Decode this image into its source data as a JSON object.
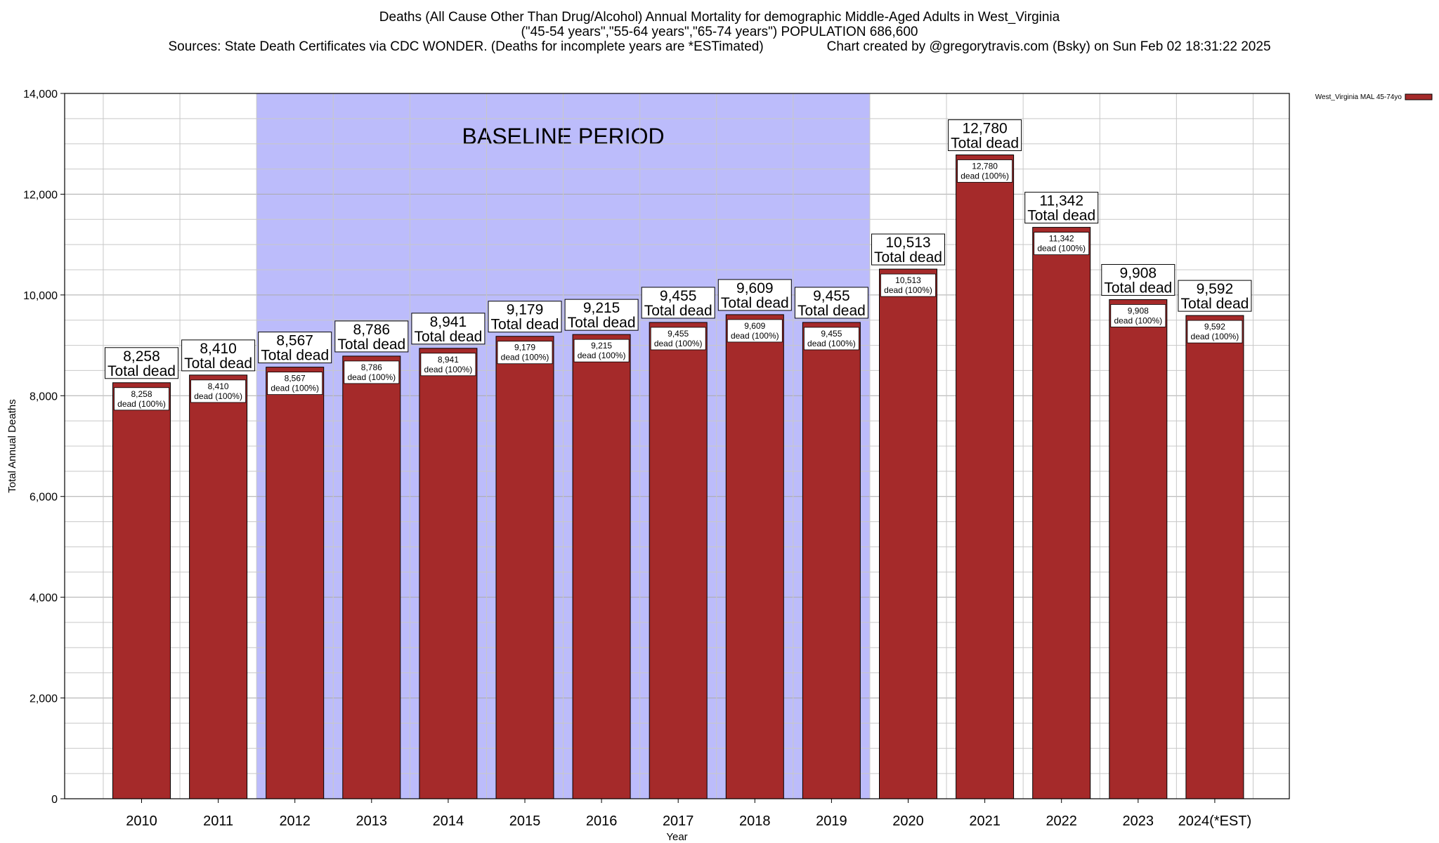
{
  "title": {
    "line1": "Deaths (All Cause Other Than Drug/Alcohol) Annual Mortality for demographic Middle-Aged Adults in West_Virginia",
    "line2": "(\"45-54 years\",\"55-64 years\",\"65-74 years\") POPULATION 686,600",
    "sources": "Sources: State Death Certificates via CDC WONDER. (Deaths for incomplete years are *ESTimated)",
    "credit": "Chart created by @gregorytravis.com (Bsky) on Sun Feb 02 18:31:22 2025"
  },
  "colors": {
    "bar": "#a52a2a",
    "bar_edge": "#000000",
    "baseline_band": "#bcbcfb",
    "grid": "#c8c8c8"
  },
  "chart_data": {
    "type": "bar",
    "title": "Deaths (All Cause Other Than Drug/Alcohol) Annual Mortality for demographic Middle-Aged Adults in West_Virginia",
    "xlabel": "Year",
    "ylabel": "Total Annual Deaths",
    "ylim": [
      0,
      14000
    ],
    "yticks": [
      0,
      2000,
      4000,
      6000,
      8000,
      10000,
      12000,
      14000
    ],
    "ytick_labels": [
      "0",
      "2,000",
      "4,000",
      "6,000",
      "8,000",
      "10,000",
      "12,000",
      "14,000"
    ],
    "grid": true,
    "legend_position": "top-right",
    "categories": [
      "2010",
      "2011",
      "2012",
      "2013",
      "2014",
      "2015",
      "2016",
      "2017",
      "2018",
      "2019",
      "2020",
      "2021",
      "2022",
      "2023",
      "2024(*EST)"
    ],
    "series": [
      {
        "name": "West_Virginia MAL 45-74yo",
        "values": [
          8258,
          8410,
          8567,
          8786,
          8941,
          9179,
          9215,
          9455,
          9609,
          9455,
          10513,
          12780,
          11342,
          9908,
          9592
        ],
        "value_labels": [
          "8,258",
          "8,410",
          "8,567",
          "8,786",
          "8,941",
          "9,179",
          "9,215",
          "9,455",
          "9,609",
          "9,455",
          "10,513",
          "12,780",
          "11,342",
          "9,908",
          "9,592"
        ]
      }
    ],
    "top_label_suffix": "Total dead",
    "inner_label_suffix": "dead (100%)",
    "annotations": [
      {
        "text": "BASELINE PERIOD",
        "span": [
          "2012",
          "2019"
        ]
      }
    ]
  }
}
